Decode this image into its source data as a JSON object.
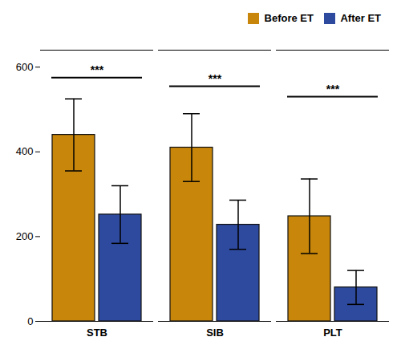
{
  "chart_data": {
    "type": "bar",
    "categories": [
      "STB",
      "SIB",
      "PLT"
    ],
    "series": [
      {
        "name": "Before ET",
        "color": "#C8860A",
        "values": [
          440,
          410,
          248
        ],
        "errors": [
          85,
          80,
          88
        ]
      },
      {
        "name": "After ET",
        "color": "#2E4A9E",
        "values": [
          252,
          228,
          80
        ],
        "errors": [
          68,
          58,
          40
        ]
      }
    ],
    "annotations": [
      {
        "text": "***",
        "x": "STB",
        "y": 575
      },
      {
        "text": "***",
        "x": "SIB",
        "y": 555
      },
      {
        "text": "***",
        "x": "PLT",
        "y": 530
      }
    ],
    "ylim": [
      0,
      640
    ],
    "yticks": [
      0,
      200,
      400,
      600
    ],
    "grid": false,
    "legend": "upper right"
  }
}
